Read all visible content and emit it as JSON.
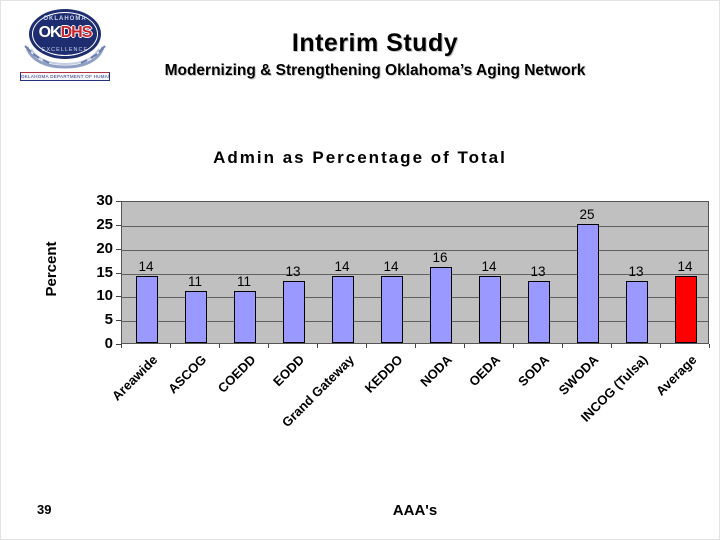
{
  "slide": {
    "title": "Interim Study",
    "subtitle": "Modernizing & Strengthening Oklahoma’s Aging Network",
    "page_number": "39"
  },
  "logo": {
    "state": "OKLAHOMA",
    "ok": "OK",
    "dhs": "DHS",
    "motto": "EXCELLENCE",
    "banner": "OKLAHOMA DEPARTMENT OF HUMAN SERVICES"
  },
  "chart_data": {
    "type": "bar",
    "title": "Admin as Percentage of Total",
    "xlabel": "AAA's",
    "ylabel": "Percent",
    "categories": [
      "Areawide",
      "ASCOG",
      "COEDD",
      "EODD",
      "Grand Gateway",
      "KEDDO",
      "NODA",
      "OEDA",
      "SODA",
      "SWODA",
      "INCOG (Tulsa)",
      "Average"
    ],
    "values": [
      14,
      11,
      11,
      13,
      14,
      14,
      16,
      14,
      13,
      25,
      13,
      14
    ],
    "yticks": [
      0,
      5,
      10,
      15,
      20,
      25,
      30
    ],
    "ylim": [
      0,
      30
    ],
    "grid": true,
    "legend": "none",
    "plot_bg": "#c0c0c0",
    "gridline_color": "#606060",
    "bar_color": "#9999ff",
    "bar_border": "#000000",
    "highlight_index": 11,
    "highlight_color": "#ff0000"
  }
}
